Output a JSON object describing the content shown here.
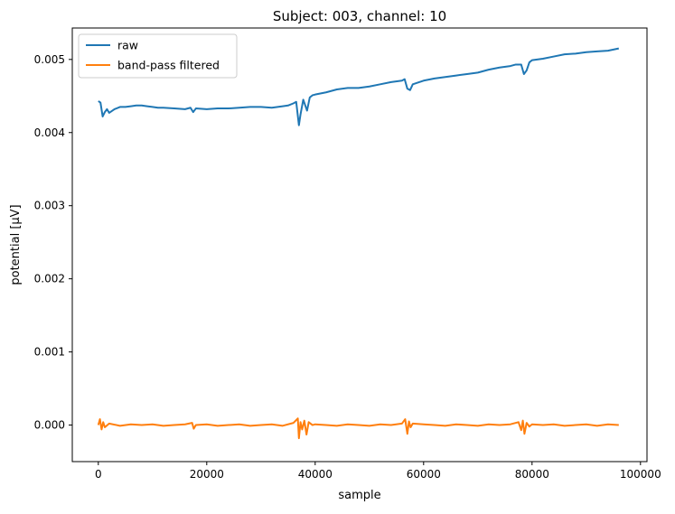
{
  "chart_data": {
    "type": "line",
    "title": "Subject: 003, channel: 10",
    "xlabel": "sample",
    "ylabel": "potential [µV]",
    "xlim": [
      -4800,
      101200
    ],
    "ylim": [
      -0.0005,
      0.00543
    ],
    "xticks": [
      0,
      20000,
      40000,
      60000,
      80000,
      100000
    ],
    "xtick_labels": [
      "0",
      "20000",
      "40000",
      "60000",
      "80000",
      "100000"
    ],
    "yticks": [
      0.0,
      0.001,
      0.002,
      0.003,
      0.004,
      0.005
    ],
    "ytick_labels": [
      "0.000",
      "0.001",
      "0.002",
      "0.003",
      "0.004",
      "0.005"
    ],
    "grid": false,
    "legend_position": "top-left",
    "series": [
      {
        "name": "raw",
        "color": "#1f77b4",
        "x": [
          0,
          400,
          800,
          1200,
          1600,
          2000,
          3000,
          4000,
          5000,
          6000,
          7000,
          8000,
          9000,
          10000,
          11000,
          12000,
          14000,
          16000,
          17000,
          17500,
          18000,
          20000,
          22000,
          24000,
          26000,
          28000,
          30000,
          32000,
          34000,
          35000,
          36000,
          36500,
          37000,
          37300,
          37800,
          38500,
          39000,
          39500,
          40000,
          42000,
          44000,
          46000,
          48000,
          50000,
          52000,
          54000,
          56000,
          56500,
          57000,
          57500,
          58000,
          60000,
          62000,
          64000,
          66000,
          68000,
          70000,
          72000,
          74000,
          76000,
          77000,
          78000,
          78500,
          79000,
          79500,
          80000,
          82000,
          84000,
          86000,
          88000,
          90000,
          92000,
          94000,
          96000
        ],
        "values": [
          0.00443,
          0.00441,
          0.00422,
          0.00428,
          0.00432,
          0.00427,
          0.00432,
          0.00435,
          0.00435,
          0.00436,
          0.00437,
          0.00437,
          0.00436,
          0.00435,
          0.00434,
          0.00434,
          0.00433,
          0.00432,
          0.00434,
          0.00428,
          0.00433,
          0.00432,
          0.00433,
          0.00433,
          0.00434,
          0.00435,
          0.00435,
          0.00434,
          0.00436,
          0.00437,
          0.0044,
          0.00442,
          0.0041,
          0.00425,
          0.00445,
          0.0043,
          0.00448,
          0.00451,
          0.00452,
          0.00455,
          0.00459,
          0.00461,
          0.00461,
          0.00463,
          0.00466,
          0.00469,
          0.00471,
          0.00473,
          0.0046,
          0.00458,
          0.00466,
          0.00471,
          0.00474,
          0.00476,
          0.00478,
          0.0048,
          0.00482,
          0.00486,
          0.00489,
          0.00491,
          0.00493,
          0.00493,
          0.0048,
          0.00485,
          0.00496,
          0.00499,
          0.00501,
          0.00504,
          0.00507,
          0.00508,
          0.0051,
          0.00511,
          0.00512,
          0.00515
        ]
      },
      {
        "name": "band-pass filtered",
        "color": "#ff7f0e",
        "x": [
          0,
          300,
          600,
          900,
          1200,
          2000,
          4000,
          6000,
          8000,
          10000,
          12000,
          14000,
          16000,
          17300,
          17600,
          18000,
          20000,
          22000,
          24000,
          26000,
          28000,
          30000,
          32000,
          34000,
          36000,
          36800,
          37000,
          37300,
          37600,
          38000,
          38400,
          38800,
          39500,
          40000,
          42000,
          44000,
          46000,
          48000,
          50000,
          52000,
          54000,
          56000,
          56600,
          57000,
          57300,
          57600,
          58000,
          60000,
          62000,
          64000,
          66000,
          68000,
          70000,
          72000,
          74000,
          76000,
          77500,
          78000,
          78300,
          78600,
          79000,
          79500,
          80000,
          82000,
          84000,
          86000,
          88000,
          90000,
          92000,
          94000,
          96000
        ],
        "values": [
          0.0,
          8e-05,
          -6e-05,
          4e-05,
          -3e-05,
          2e-05,
          -1e-05,
          1e-05,
          0.0,
          1e-05,
          -1e-05,
          0.0,
          1e-05,
          3e-05,
          -5e-05,
          0.0,
          1e-05,
          -1e-05,
          0.0,
          1e-05,
          -1e-05,
          0.0,
          1e-05,
          -1e-05,
          3e-05,
          9e-05,
          -0.00018,
          4e-05,
          -6e-05,
          6e-05,
          -0.00013,
          4e-05,
          0.0,
          1e-05,
          0.0,
          -1e-05,
          1e-05,
          0.0,
          -1e-05,
          1e-05,
          0.0,
          2e-05,
          8e-05,
          -0.00012,
          5e-05,
          -3e-05,
          2e-05,
          1e-05,
          0.0,
          -1e-05,
          1e-05,
          0.0,
          -1e-05,
          1e-05,
          0.0,
          1e-05,
          4e-05,
          -7e-05,
          6e-05,
          -0.00012,
          3e-05,
          -2e-05,
          1e-05,
          0.0,
          1e-05,
          -1e-05,
          0.0,
          1e-05,
          -1e-05,
          1e-05,
          0.0
        ]
      }
    ]
  }
}
